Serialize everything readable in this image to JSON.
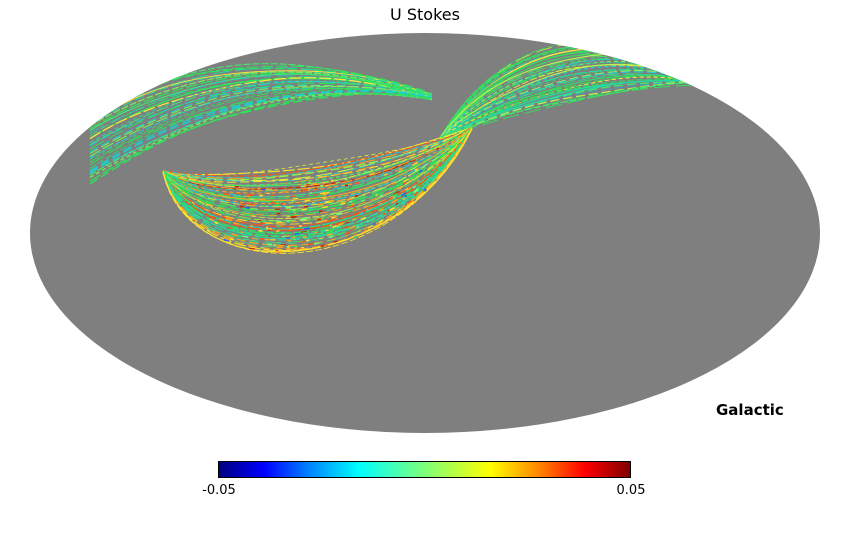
{
  "chart_data": {
    "type": "heatmap",
    "projection": "mollweide",
    "title": "U Stokes",
    "coordinate_system": "Galactic",
    "colorbar": {
      "min": -0.05,
      "max": 0.05,
      "min_label": "-0.05",
      "max_label": "0.05",
      "colormap": "jet",
      "gradient_stops": [
        {
          "color": "#00007f",
          "pos": 0
        },
        {
          "color": "#0000ff",
          "pos": 0.11
        },
        {
          "color": "#0084ff",
          "pos": 0.22
        },
        {
          "color": "#00ffff",
          "pos": 0.34
        },
        {
          "color": "#7dff7a",
          "pos": 0.5
        },
        {
          "color": "#ffff00",
          "pos": 0.66
        },
        {
          "color": "#ff8400",
          "pos": 0.78
        },
        {
          "color": "#ff0000",
          "pos": 0.89
        },
        {
          "color": "#7f0000",
          "pos": 1
        }
      ]
    },
    "unseen_color": "#7f7f7f",
    "background_color": "#ffffff",
    "description": "Partial-sky scan coverage; observed band values near 0 (green) with excursions toward +0.05 (yellow/orange/red) and below 0 (cyan/blue); unobserved pixels gray",
    "scan_palette_cool": [
      [
        "#2ee25c",
        0.3
      ],
      [
        "#43e96f",
        0.16
      ],
      [
        "#27d8a0",
        0.13
      ],
      [
        "#1ecfd2",
        0.1
      ],
      [
        "#79ef57",
        0.12
      ],
      [
        "#b8f44e",
        0.07
      ],
      [
        "#ffe83a",
        0.07
      ],
      [
        "#ffb020",
        0.03
      ],
      [
        "#29a9e0",
        0.02
      ]
    ],
    "scan_palette_warm": [
      [
        "#2ee25c",
        0.22
      ],
      [
        "#43e96f",
        0.1
      ],
      [
        "#27d8a0",
        0.08
      ],
      [
        "#1ecfd2",
        0.07
      ],
      [
        "#8df04e",
        0.1
      ],
      [
        "#d8f23c",
        0.08
      ],
      [
        "#ffe22e",
        0.14
      ],
      [
        "#ffa51e",
        0.09
      ],
      [
        "#ff5510",
        0.06
      ],
      [
        "#cc2200",
        0.03
      ],
      [
        "#2979ff",
        0.03
      ]
    ],
    "speckle_palette": [
      [
        "#ffdd2a",
        0.26
      ],
      [
        "#ffa51e",
        0.2
      ],
      [
        "#ff5510",
        0.16
      ],
      [
        "#cc2200",
        0.08
      ],
      [
        "#7dff7a",
        0.12
      ],
      [
        "#2ee25c",
        0.08
      ],
      [
        "#1ecfd2",
        0.06
      ],
      [
        "#2255ff",
        0.04
      ]
    ]
  }
}
